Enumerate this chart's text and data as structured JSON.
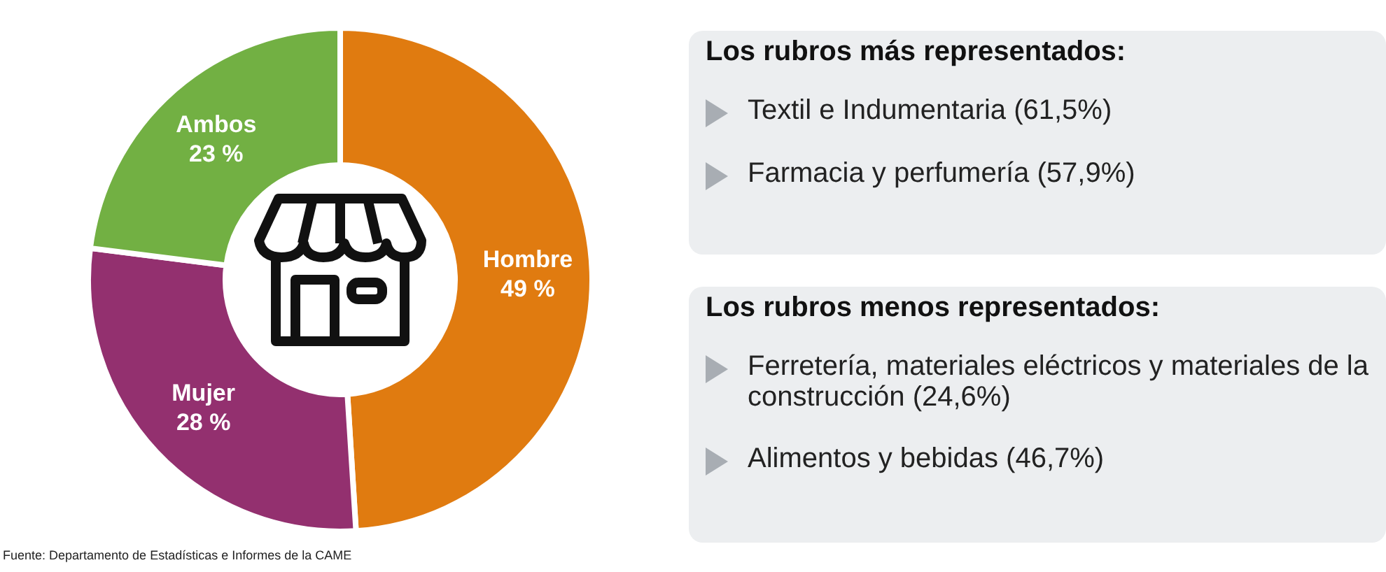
{
  "chart_data": [
    {
      "type": "donut",
      "categories": [
        "Hombre",
        "Mujer",
        "Ambos"
      ],
      "values": [
        49,
        28,
        23
      ],
      "colors": [
        "#e07b10",
        "#93306f",
        "#72b043"
      ],
      "value_labels": [
        "49 %",
        "28 %",
        "23 %"
      ],
      "legend": false,
      "annotations": [
        "Fuente: Departamento de Estadísticas e Informes de la CAME"
      ]
    },
    {
      "type": "other",
      "title": "Los rubros más representados:",
      "annotations": [
        "Textil e Indumentaria (61,5%)",
        "Farmacia y perfumería (57,9%)"
      ]
    },
    {
      "type": "other",
      "title": "Los rubros menos representados:",
      "annotations": [
        "Ferretería, materiales eléctricos y materiales de la construcción (24,6%)",
        "Alimentos y bebidas (46,7%)"
      ]
    }
  ]
}
